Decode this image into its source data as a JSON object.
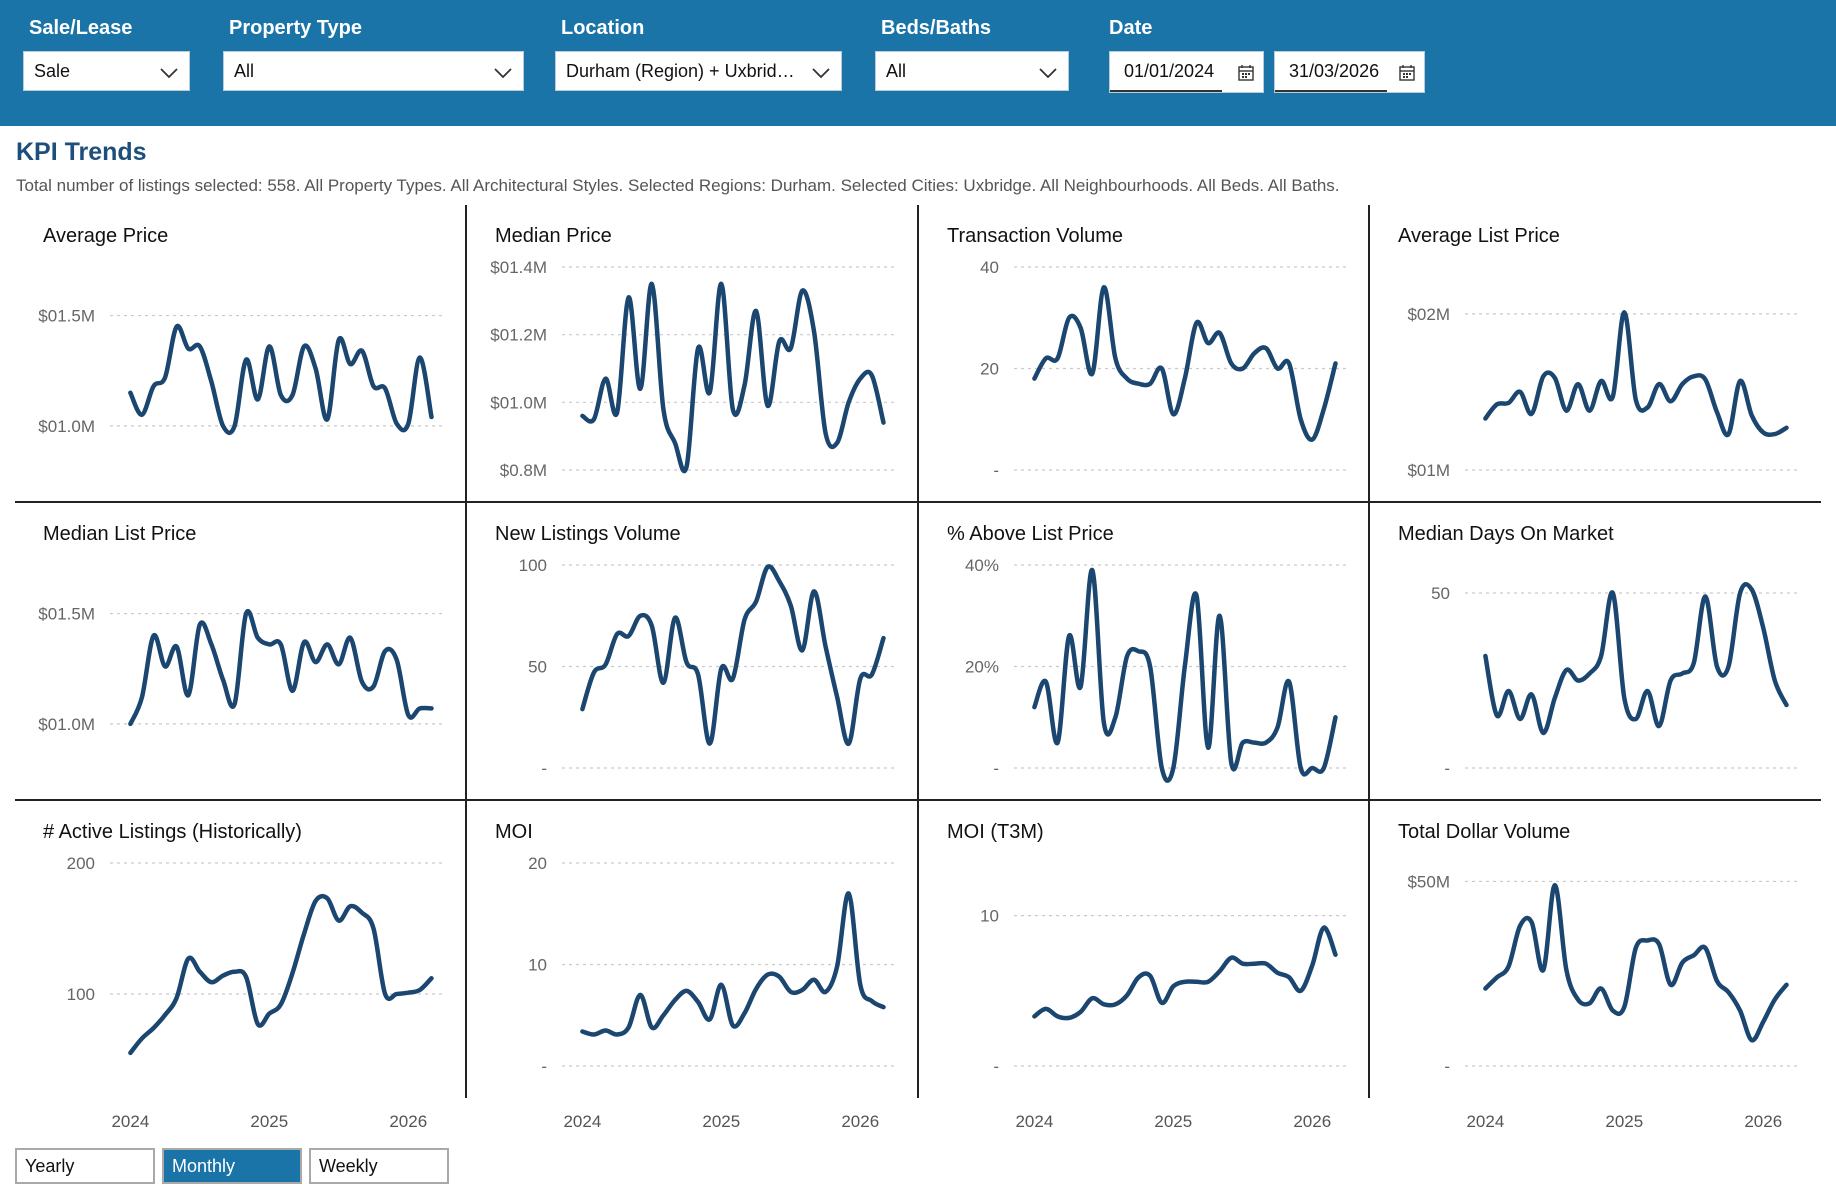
{
  "filters": {
    "sale_lease": {
      "label": "Sale/Lease",
      "value": "Sale"
    },
    "property_type": {
      "label": "Property Type",
      "value": "All"
    },
    "location": {
      "label": "Location",
      "value": "Durham (Region) + Uxbridg..."
    },
    "beds_baths": {
      "label": "Beds/Baths",
      "value": "All"
    },
    "date": {
      "label": "Date",
      "start": "01/01/2024",
      "end": "31/03/2026"
    }
  },
  "header": {
    "title": "KPI Trends",
    "subtitle": "Total number of listings selected: 558. All Property Types. All Architectural Styles. Selected Regions: Durham. Selected Cities: Uxbridge. All Neighbourhoods. All Beds. All Baths."
  },
  "granularity": {
    "options": [
      "Yearly",
      "Monthly",
      "Weekly"
    ],
    "selected": "Monthly"
  },
  "colors": {
    "series": "#1b4670",
    "accent": "#1a74a8"
  },
  "chart_data": [
    {
      "type": "line",
      "title": "Average Price",
      "unit": "$M",
      "yticks": [
        {
          "v": 1.0,
          "label": "$01.0M"
        },
        {
          "v": 1.5,
          "label": "$01.5M"
        }
      ],
      "ylim": [
        0.8,
        1.72
      ],
      "x": [
        2024.0,
        2024.083,
        2024.167,
        2024.25,
        2024.333,
        2024.417,
        2024.5,
        2024.583,
        2024.667,
        2024.75,
        2024.833,
        2024.917,
        2025.0,
        2025.083,
        2025.167,
        2025.25,
        2025.333,
        2025.417,
        2025.5,
        2025.583,
        2025.667,
        2025.75,
        2025.833,
        2025.917,
        2026.0,
        2026.083,
        2026.167
      ],
      "values": [
        1.15,
        1.05,
        1.18,
        1.22,
        1.45,
        1.35,
        1.36,
        1.2,
        1.0,
        1.0,
        1.3,
        1.12,
        1.36,
        1.14,
        1.14,
        1.36,
        1.26,
        1.03,
        1.39,
        1.28,
        1.34,
        1.18,
        1.17,
        1.01,
        1.01,
        1.31,
        1.04
      ]
    },
    {
      "type": "line",
      "title": "Median Price",
      "unit": "$M",
      "yticks": [
        {
          "v": 0.8,
          "label": "$0.8M"
        },
        {
          "v": 1.0,
          "label": "$01.0M"
        },
        {
          "v": 1.2,
          "label": "$01.2M"
        },
        {
          "v": 1.4,
          "label": "$01.4M"
        }
      ],
      "ylim": [
        0.8,
        1.4
      ],
      "x": [
        2024.0,
        2024.083,
        2024.167,
        2024.25,
        2024.333,
        2024.417,
        2024.5,
        2024.583,
        2024.667,
        2024.75,
        2024.833,
        2024.917,
        2025.0,
        2025.083,
        2025.167,
        2025.25,
        2025.333,
        2025.417,
        2025.5,
        2025.583,
        2025.667,
        2025.75,
        2025.833,
        2025.917,
        2026.0,
        2026.083,
        2026.167
      ],
      "values": [
        0.96,
        0.95,
        1.07,
        0.97,
        1.31,
        1.04,
        1.35,
        0.98,
        0.88,
        0.81,
        1.16,
        1.03,
        1.35,
        0.98,
        1.05,
        1.27,
        0.99,
        1.18,
        1.16,
        1.33,
        1.21,
        0.91,
        0.88,
        1.0,
        1.07,
        1.08,
        0.94
      ]
    },
    {
      "type": "line",
      "title": "Transaction Volume",
      "yticks": [
        {
          "v": 0,
          "label": "-"
        },
        {
          "v": 20,
          "label": "20"
        },
        {
          "v": 40,
          "label": "40"
        }
      ],
      "ylim": [
        0,
        40
      ],
      "x": [
        2024.0,
        2024.083,
        2024.167,
        2024.25,
        2024.333,
        2024.417,
        2024.5,
        2024.583,
        2024.667,
        2024.75,
        2024.833,
        2024.917,
        2025.0,
        2025.083,
        2025.167,
        2025.25,
        2025.333,
        2025.417,
        2025.5,
        2025.583,
        2025.667,
        2025.75,
        2025.833,
        2025.917,
        2026.0,
        2026.083,
        2026.167
      ],
      "values": [
        18,
        22,
        22,
        30,
        28,
        19,
        36,
        22,
        18,
        17,
        17,
        20,
        11,
        18,
        29,
        25,
        27,
        21,
        20,
        23,
        24,
        20,
        21,
        10,
        6,
        12,
        21
      ]
    },
    {
      "type": "line",
      "title": "Average List Price",
      "unit": "$M",
      "yticks": [
        {
          "v": 1.0,
          "label": "$01M"
        },
        {
          "v": 2.0,
          "label": "$02M"
        }
      ],
      "ylim": [
        1.0,
        2.3
      ],
      "x": [
        2024.0,
        2024.083,
        2024.167,
        2024.25,
        2024.333,
        2024.417,
        2024.5,
        2024.583,
        2024.667,
        2024.75,
        2024.833,
        2024.917,
        2025.0,
        2025.083,
        2025.167,
        2025.25,
        2025.333,
        2025.417,
        2025.5,
        2025.583,
        2025.667,
        2025.75,
        2025.833,
        2025.917,
        2026.0,
        2026.083,
        2026.167
      ],
      "values": [
        1.33,
        1.42,
        1.43,
        1.5,
        1.36,
        1.6,
        1.59,
        1.38,
        1.55,
        1.38,
        1.57,
        1.47,
        2.01,
        1.45,
        1.4,
        1.55,
        1.44,
        1.55,
        1.6,
        1.58,
        1.37,
        1.23,
        1.57,
        1.35,
        1.24,
        1.23,
        1.27
      ]
    },
    {
      "type": "line",
      "title": "Median List Price",
      "unit": "$M",
      "yticks": [
        {
          "v": 1.0,
          "label": "$01.0M"
        },
        {
          "v": 1.5,
          "label": "$01.5M"
        }
      ],
      "ylim": [
        0.8,
        1.72
      ],
      "x": [
        2024.0,
        2024.083,
        2024.167,
        2024.25,
        2024.333,
        2024.417,
        2024.5,
        2024.583,
        2024.667,
        2024.75,
        2024.833,
        2024.917,
        2025.0,
        2025.083,
        2025.167,
        2025.25,
        2025.333,
        2025.417,
        2025.5,
        2025.583,
        2025.667,
        2025.75,
        2025.833,
        2025.917,
        2026.0,
        2026.083,
        2026.167
      ],
      "values": [
        1.0,
        1.12,
        1.4,
        1.26,
        1.35,
        1.13,
        1.45,
        1.36,
        1.2,
        1.09,
        1.5,
        1.39,
        1.36,
        1.36,
        1.15,
        1.37,
        1.28,
        1.36,
        1.27,
        1.39,
        1.19,
        1.17,
        1.33,
        1.29,
        1.04,
        1.07,
        1.07
      ]
    },
    {
      "type": "line",
      "title": "New Listings Volume",
      "yticks": [
        {
          "v": 0,
          "label": "-"
        },
        {
          "v": 50,
          "label": "50"
        },
        {
          "v": 100,
          "label": "100"
        }
      ],
      "ylim": [
        0,
        100
      ],
      "x": [
        2024.0,
        2024.083,
        2024.167,
        2024.25,
        2024.333,
        2024.417,
        2024.5,
        2024.583,
        2024.667,
        2024.75,
        2024.833,
        2024.917,
        2025.0,
        2025.083,
        2025.167,
        2025.25,
        2025.333,
        2025.417,
        2025.5,
        2025.583,
        2025.667,
        2025.75,
        2025.833,
        2025.917,
        2026.0,
        2026.083,
        2026.167
      ],
      "values": [
        29,
        47,
        51,
        66,
        65,
        75,
        70,
        42,
        74,
        52,
        46,
        12,
        49,
        44,
        73,
        82,
        99,
        92,
        80,
        58,
        87,
        60,
        35,
        12,
        44,
        46,
        64
      ]
    },
    {
      "type": "line",
      "title": "% Above List Price",
      "unit": "%",
      "yticks": [
        {
          "v": 0,
          "label": "-"
        },
        {
          "v": 20,
          "label": "20%"
        },
        {
          "v": 40,
          "label": "40%"
        }
      ],
      "ylim": [
        0,
        40
      ],
      "x": [
        2024.0,
        2024.083,
        2024.167,
        2024.25,
        2024.333,
        2024.417,
        2024.5,
        2024.583,
        2024.667,
        2024.75,
        2024.833,
        2024.917,
        2025.0,
        2025.083,
        2025.167,
        2025.25,
        2025.333,
        2025.417,
        2025.5,
        2025.583,
        2025.667,
        2025.75,
        2025.833,
        2025.917,
        2026.0,
        2026.083,
        2026.167
      ],
      "values": [
        12,
        17,
        5,
        26,
        16,
        39,
        9,
        10,
        22,
        23,
        20,
        0,
        0,
        20,
        34,
        4,
        30,
        1,
        5,
        5,
        5,
        8,
        17,
        0,
        0,
        0,
        10
      ]
    },
    {
      "type": "line",
      "title": "Median Days On Market",
      "yticks": [
        {
          "v": 0,
          "label": "-"
        },
        {
          "v": 50,
          "label": "50"
        }
      ],
      "ylim": [
        0,
        58
      ],
      "x": [
        2024.0,
        2024.083,
        2024.167,
        2024.25,
        2024.333,
        2024.417,
        2024.5,
        2024.583,
        2024.667,
        2024.75,
        2024.833,
        2024.917,
        2025.0,
        2025.083,
        2025.167,
        2025.25,
        2025.333,
        2025.417,
        2025.5,
        2025.583,
        2025.667,
        2025.75,
        2025.833,
        2025.917,
        2026.0,
        2026.083,
        2026.167
      ],
      "values": [
        32,
        15,
        22,
        14,
        21,
        10,
        20,
        28,
        25,
        27,
        32,
        50,
        20,
        14,
        22,
        12,
        25,
        27,
        30,
        49,
        29,
        29,
        50,
        51,
        40,
        25,
        18
      ]
    },
    {
      "type": "line",
      "title": "# Active Listings (Historically)",
      "yticks": [
        {
          "v": 100,
          "label": "100"
        },
        {
          "v": 200,
          "label": "200"
        }
      ],
      "ylim": [
        45,
        200
      ],
      "x": [
        2024.0,
        2024.083,
        2024.167,
        2024.25,
        2024.333,
        2024.417,
        2024.5,
        2024.583,
        2024.667,
        2024.75,
        2024.833,
        2024.917,
        2025.0,
        2025.083,
        2025.167,
        2025.25,
        2025.333,
        2025.417,
        2025.5,
        2025.583,
        2025.667,
        2025.75,
        2025.833,
        2025.917,
        2026.0,
        2026.083,
        2026.167
      ],
      "values": [
        55,
        66,
        74,
        84,
        97,
        127,
        117,
        109,
        114,
        117,
        113,
        77,
        85,
        92,
        116,
        146,
        171,
        173,
        156,
        167,
        162,
        150,
        100,
        100,
        101,
        103,
        112
      ]
    },
    {
      "type": "line",
      "title": "MOI",
      "yticks": [
        {
          "v": 0,
          "label": "-"
        },
        {
          "v": 10,
          "label": "10"
        },
        {
          "v": 20,
          "label": "20"
        }
      ],
      "ylim": [
        0,
        20
      ],
      "x": [
        2024.0,
        2024.083,
        2024.167,
        2024.25,
        2024.333,
        2024.417,
        2024.5,
        2024.583,
        2024.667,
        2024.75,
        2024.833,
        2024.917,
        2025.0,
        2025.083,
        2025.167,
        2025.25,
        2025.333,
        2025.417,
        2025.5,
        2025.583,
        2025.667,
        2025.75,
        2025.833,
        2025.917,
        2026.0,
        2026.083,
        2026.167
      ],
      "values": [
        3.4,
        3.1,
        3.5,
        3.1,
        3.8,
        7.0,
        3.8,
        5.0,
        6.5,
        7.4,
        6.3,
        4.6,
        8.0,
        4.0,
        5.2,
        7.6,
        9.0,
        8.8,
        7.3,
        7.5,
        8.5,
        7.3,
        9.8,
        17.0,
        8.0,
        6.4,
        5.8
      ]
    },
    {
      "type": "line",
      "title": "MOI (T3M)",
      "yticks": [
        {
          "v": 0,
          "label": "-"
        },
        {
          "v": 10,
          "label": "10"
        }
      ],
      "ylim": [
        0,
        13.5
      ],
      "x": [
        2024.0,
        2024.083,
        2024.167,
        2024.25,
        2024.333,
        2024.417,
        2024.5,
        2024.583,
        2024.667,
        2024.75,
        2024.833,
        2024.917,
        2025.0,
        2025.083,
        2025.167,
        2025.25,
        2025.333,
        2025.417,
        2025.5,
        2025.583,
        2025.667,
        2025.75,
        2025.833,
        2025.917,
        2026.0,
        2026.083,
        2026.167
      ],
      "values": [
        3.3,
        3.8,
        3.3,
        3.2,
        3.6,
        4.5,
        4.1,
        4.1,
        4.7,
        5.9,
        6.0,
        4.2,
        5.3,
        5.6,
        5.6,
        5.6,
        6.3,
        7.2,
        6.8,
        6.8,
        6.8,
        6.2,
        5.9,
        5.0,
        6.7,
        9.2,
        7.4
      ]
    },
    {
      "type": "line",
      "title": "Total Dollar Volume",
      "unit": "$M",
      "yticks": [
        {
          "v": 0,
          "label": "-"
        },
        {
          "v": 50,
          "label": "$50M"
        }
      ],
      "ylim": [
        0,
        55
      ],
      "x": [
        2024.0,
        2024.083,
        2024.167,
        2024.25,
        2024.333,
        2024.417,
        2024.5,
        2024.583,
        2024.667,
        2024.75,
        2024.833,
        2024.917,
        2025.0,
        2025.083,
        2025.167,
        2025.25,
        2025.333,
        2025.417,
        2025.5,
        2025.583,
        2025.667,
        2025.75,
        2025.833,
        2025.917,
        2026.0,
        2026.083,
        2026.167
      ],
      "values": [
        21,
        24,
        27,
        38,
        39,
        26,
        49,
        26,
        18,
        17,
        21,
        15,
        16,
        32,
        34,
        33,
        22,
        28,
        30,
        32,
        23,
        20,
        15,
        7,
        12,
        18,
        22
      ]
    }
  ],
  "x_axis_labels": [
    {
      "v": 2024,
      "label": "2024"
    },
    {
      "v": 2025,
      "label": "2025"
    },
    {
      "v": 2026,
      "label": "2026"
    }
  ]
}
